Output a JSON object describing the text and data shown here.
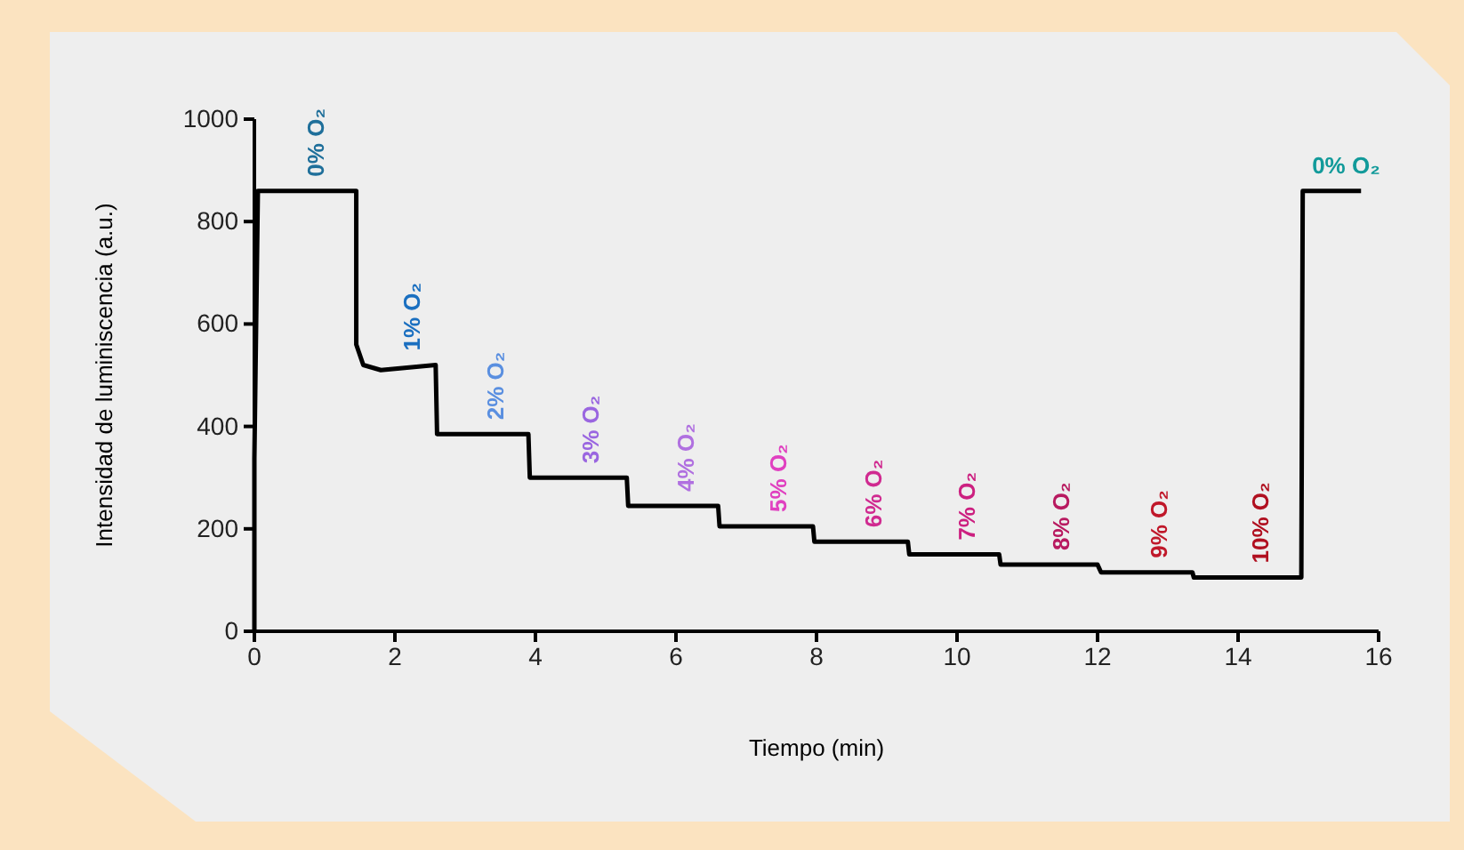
{
  "chart_data": {
    "type": "line",
    "xlabel": "Tiempo (min)",
    "ylabel": "Intensidad de luminiscencia (a.u.)",
    "xlim": [
      0,
      16
    ],
    "xticks": [
      0,
      2,
      4,
      6,
      8,
      10,
      12,
      14,
      16
    ],
    "ylim": [
      0,
      1000
    ],
    "yticks": [
      0,
      200,
      400,
      600,
      800,
      1000
    ],
    "grid": false,
    "marker": "none",
    "line_style": "solid",
    "series": [
      {
        "color": "#000000",
        "x": [
          0,
          0,
          0.05,
          1.45,
          1.45,
          1.55,
          1.8,
          2.58,
          2.6,
          3.9,
          3.92,
          5.3,
          5.32,
          6.6,
          6.62,
          7.95,
          7.97,
          9.3,
          9.32,
          10.6,
          10.62,
          12.0,
          12.05,
          13.35,
          13.37,
          14.9,
          14.92,
          15.75
        ],
        "values": [
          0,
          337,
          860,
          860,
          560,
          520,
          510,
          520,
          385,
          385,
          300,
          300,
          245,
          245,
          205,
          205,
          175,
          175,
          150,
          150,
          130,
          130,
          115,
          115,
          105,
          105,
          860,
          860
        ]
      }
    ],
    "annotations": [
      "0% O₂",
      "1% O₂",
      "2% O₂",
      "3% O₂",
      "4% O₂",
      "5% O₂",
      "6% O₂",
      "7% O₂",
      "8% O₂",
      "9% O₂",
      "10% O₂",
      "0% O₂"
    ]
  }
}
